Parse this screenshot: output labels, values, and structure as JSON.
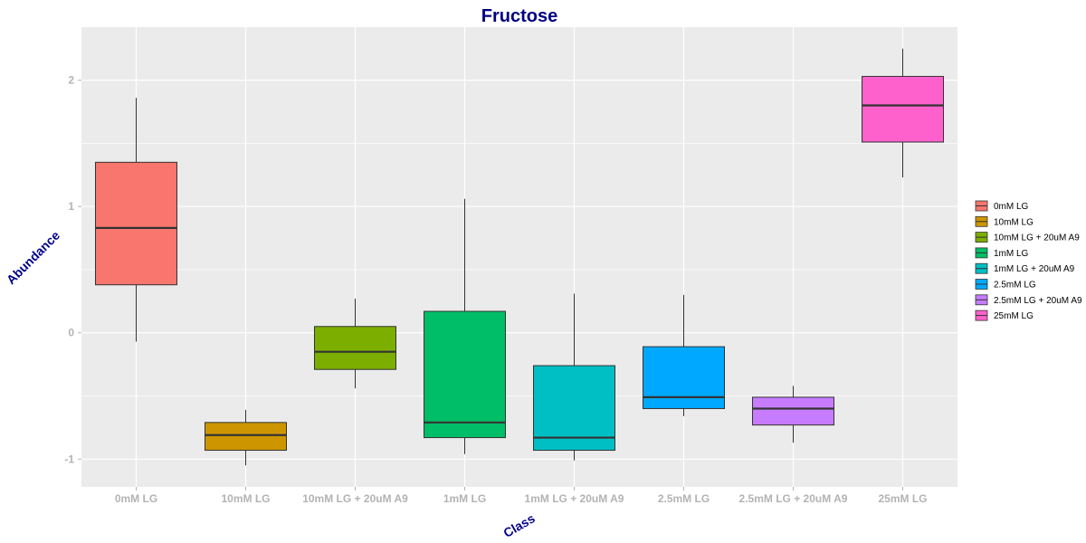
{
  "colors": {
    "title": "#000080",
    "axis_title": "#00008B",
    "tick_label": "#B3B3B3",
    "panel_background": "#EBEBEB",
    "grid": "#FFFFFF"
  },
  "chart_data": {
    "type": "boxplot",
    "title": "Fructose",
    "xlabel": "Class",
    "ylabel": "Abundance",
    "ylim": [
      -1.22,
      2.42
    ],
    "yticks": [
      -1,
      0,
      1,
      2
    ],
    "grid": true,
    "legend_position": "right",
    "categories": [
      "0mM LG",
      "10mM LG",
      "10mM LG + 20uM A9",
      "1mM LG",
      "1mM LG + 20uM A9",
      "2.5mM LG",
      "2.5mM LG + 20uM A9",
      "25mM LG"
    ],
    "boxes": [
      {
        "name": "0mM LG",
        "min": -0.07,
        "q1": 0.38,
        "median": 0.83,
        "q3": 1.35,
        "max": 1.86,
        "color": "#F8766D"
      },
      {
        "name": "10mM LG",
        "min": -1.05,
        "q1": -0.93,
        "median": -0.81,
        "q3": -0.71,
        "max": -0.61,
        "color": "#CD9600"
      },
      {
        "name": "10mM LG + 20uM A9",
        "min": -0.44,
        "q1": -0.29,
        "median": -0.15,
        "q3": 0.05,
        "max": 0.27,
        "color": "#7CAE00"
      },
      {
        "name": "1mM LG",
        "min": -0.96,
        "q1": -0.83,
        "median": -0.71,
        "q3": 0.17,
        "max": 1.06,
        "color": "#00BE67"
      },
      {
        "name": "1mM LG + 20uM A9",
        "min": -1.01,
        "q1": -0.93,
        "median": -0.83,
        "q3": -0.26,
        "max": 0.31,
        "color": "#00BFC4"
      },
      {
        "name": "2.5mM LG",
        "min": -0.66,
        "q1": -0.6,
        "median": -0.51,
        "q3": -0.11,
        "max": 0.3,
        "color": "#00A9FF"
      },
      {
        "name": "2.5mM LG + 20uM A9",
        "min": -0.87,
        "q1": -0.73,
        "median": -0.6,
        "q3": -0.51,
        "max": -0.42,
        "color": "#C77CFF"
      },
      {
        "name": "25mM LG",
        "min": 1.23,
        "q1": 1.51,
        "median": 1.8,
        "q3": 2.03,
        "max": 2.25,
        "color": "#FF61CC"
      }
    ]
  }
}
